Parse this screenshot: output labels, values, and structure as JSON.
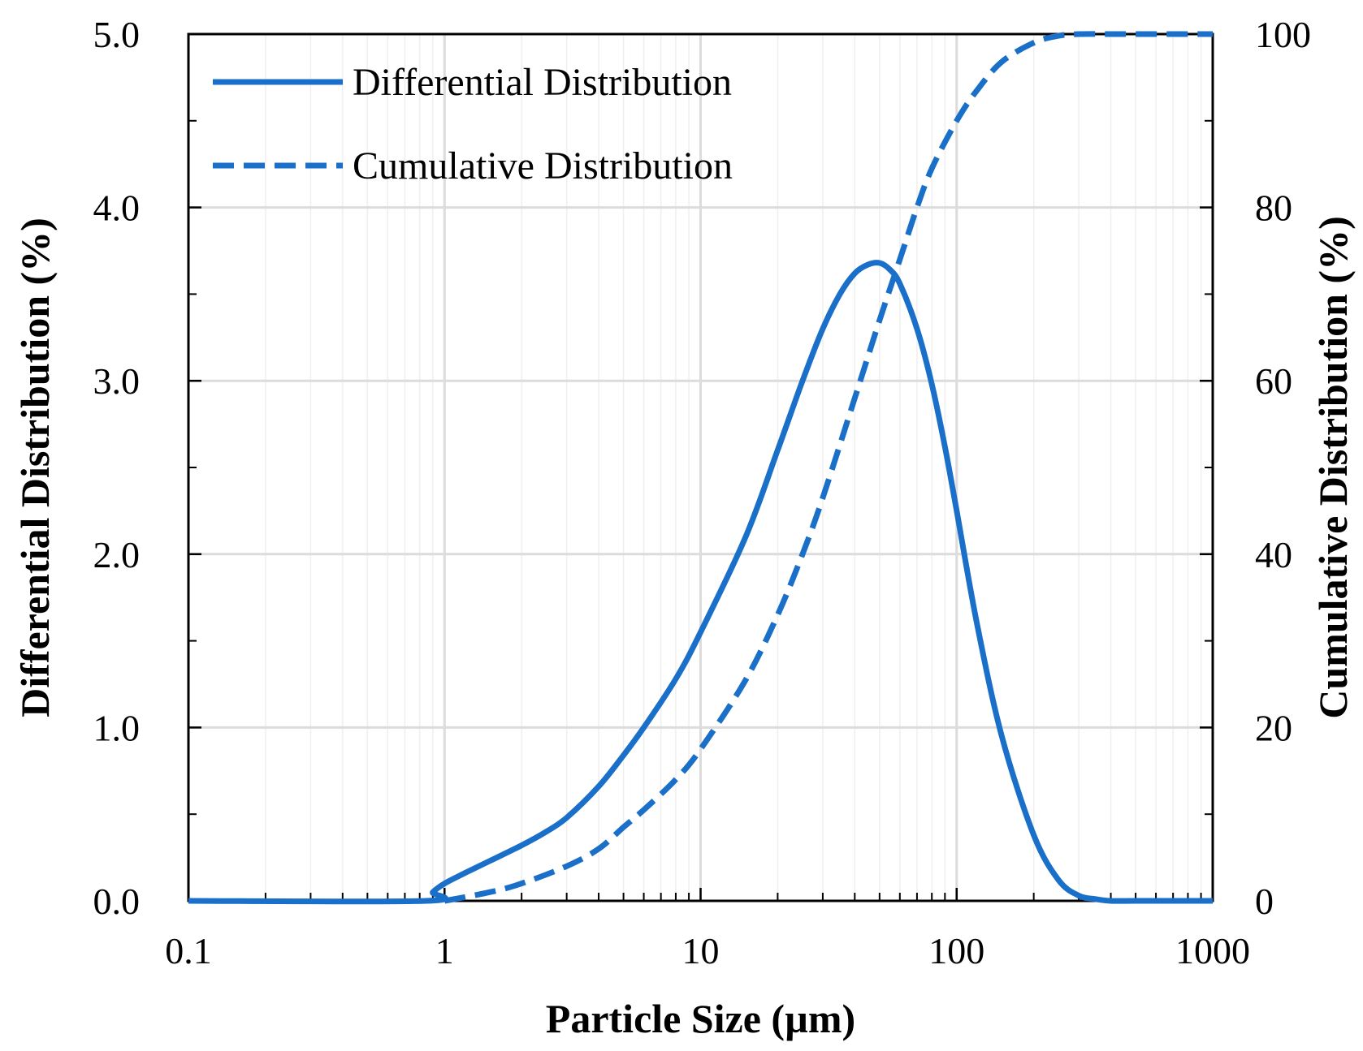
{
  "chart_data": {
    "type": "line",
    "xscale": "log",
    "xlabel": "Particle Size (µm)",
    "ylabel_left": "Differential Distribution (%)",
    "ylabel_right": "Cumulative Distribution (%)",
    "xlim": [
      0.1,
      1000
    ],
    "ylim_left": [
      0,
      5
    ],
    "ylim_right": [
      0,
      100
    ],
    "grid": true,
    "legend_position": "top-left",
    "x_ticks": [
      {
        "value": 0.1,
        "label": "0.1"
      },
      {
        "value": 1,
        "label": "1"
      },
      {
        "value": 10,
        "label": "10"
      },
      {
        "value": 100,
        "label": "100"
      },
      {
        "value": 1000,
        "label": "1000"
      }
    ],
    "y_left_ticks": [
      {
        "value": 0,
        "label": "0.0"
      },
      {
        "value": 1,
        "label": "1.0"
      },
      {
        "value": 2,
        "label": "2.0"
      },
      {
        "value": 3,
        "label": "3.0"
      },
      {
        "value": 4,
        "label": "4.0"
      },
      {
        "value": 5,
        "label": "5.0"
      }
    ],
    "y_right_ticks": [
      {
        "value": 0,
        "label": "0"
      },
      {
        "value": 20,
        "label": "20"
      },
      {
        "value": 40,
        "label": "40"
      },
      {
        "value": 60,
        "label": "60"
      },
      {
        "value": 80,
        "label": "80"
      },
      {
        "value": 100,
        "label": "100"
      }
    ],
    "series": [
      {
        "name": "Differential Distribution",
        "axis": "left",
        "style": "solid",
        "color": "#1a6fc8",
        "x": [
          0.1,
          0.85,
          0.9,
          1.0,
          1.2,
          1.5,
          2,
          2.5,
          3,
          4,
          5,
          6,
          8,
          10,
          15,
          20,
          25,
          30,
          35,
          40,
          45,
          50,
          55,
          60,
          70,
          80,
          90,
          100,
          120,
          150,
          200,
          250,
          300,
          350,
          400,
          500,
          700,
          1000
        ],
        "values": [
          0,
          0,
          0.05,
          0.1,
          0.16,
          0.23,
          0.32,
          0.4,
          0.48,
          0.66,
          0.84,
          1.0,
          1.28,
          1.55,
          2.1,
          2.6,
          3.0,
          3.3,
          3.5,
          3.62,
          3.67,
          3.68,
          3.64,
          3.56,
          3.3,
          2.98,
          2.62,
          2.25,
          1.6,
          0.95,
          0.38,
          0.12,
          0.03,
          0.01,
          0,
          0,
          0,
          0
        ]
      },
      {
        "name": "Cumulative Distribution",
        "axis": "right",
        "style": "dashed",
        "color": "#1a6fc8",
        "x": [
          1.0,
          1.5,
          2,
          3,
          4,
          5,
          6,
          8,
          10,
          15,
          20,
          25,
          30,
          40,
          50,
          60,
          70,
          80,
          100,
          120,
          150,
          200,
          250,
          300,
          400,
          500,
          700,
          1000
        ],
        "values": [
          0,
          1.0,
          2.0,
          4.0,
          6.0,
          8.5,
          10.5,
          14.0,
          17.5,
          25.5,
          33.0,
          40.0,
          46.5,
          58.0,
          67.0,
          74.0,
          80.0,
          84.5,
          90.0,
          93.5,
          96.8,
          99.0,
          99.8,
          100,
          100,
          100,
          100,
          100
        ]
      }
    ]
  }
}
